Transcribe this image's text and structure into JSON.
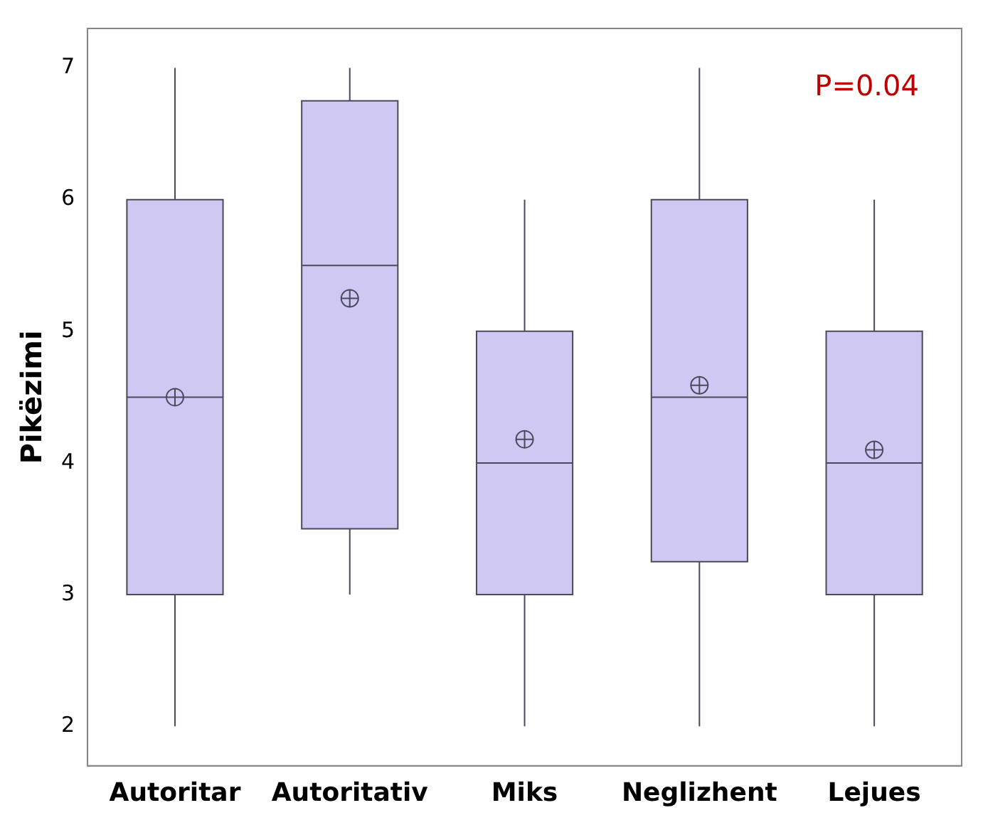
{
  "chart_data": {
    "type": "box",
    "ylabel": "Pikëzimi",
    "categories": [
      "Autoritar",
      "Autoritativ",
      "Miks",
      "Neglizhent",
      "Lejues"
    ],
    "color": "#cfc8f3",
    "boxes": [
      {
        "low": 2,
        "q1": 3,
        "median": 4.5,
        "q3": 6,
        "high": 7,
        "mean": 4.5
      },
      {
        "low": 3,
        "q1": 3.5,
        "median": 5.5,
        "q3": 6.75,
        "high": 7,
        "mean": 5.25
      },
      {
        "low": 2,
        "q1": 3,
        "median": 4,
        "q3": 5,
        "high": 6,
        "mean": 4.18
      },
      {
        "low": 2,
        "q1": 3.25,
        "median": 4.5,
        "q3": 6,
        "high": 7,
        "mean": 4.59
      },
      {
        "low": 2,
        "q1": 3,
        "median": 4,
        "q3": 5,
        "high": 6,
        "mean": 4.1
      }
    ],
    "ylim": [
      1.7,
      7.3
    ],
    "yticks": [
      2,
      3,
      4,
      5,
      6,
      7
    ],
    "grid": false,
    "legend": false,
    "annotations": [
      "P=0.04"
    ]
  }
}
